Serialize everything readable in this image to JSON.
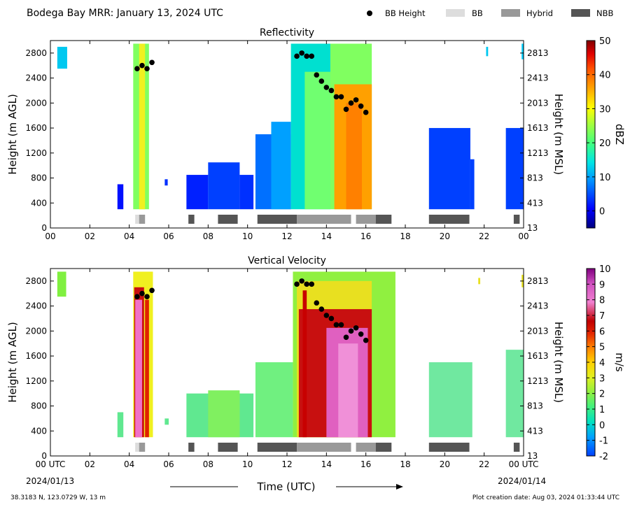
{
  "header": {
    "title": "Bodega Bay MRR:  January 13, 2024 UTC",
    "legend": [
      {
        "label": "BB Height",
        "kind": "dot",
        "color": "#000000"
      },
      {
        "label": "BB",
        "kind": "box",
        "color": "#dddddd"
      },
      {
        "label": "Hybrid",
        "kind": "box",
        "color": "#999999"
      },
      {
        "label": "NBB",
        "kind": "box",
        "color": "#555555"
      }
    ]
  },
  "footer": {
    "location": "38.3183 N, 123.0729 W, 13 m",
    "created": "Plot creation date: Aug 03, 2024 01:33:44 UTC",
    "xlabel": "Time (UTC)",
    "start_date": "2024/01/13",
    "end_date": "2024/01/14"
  },
  "chart_data": [
    {
      "type": "heatmap",
      "title": "Reflectivity",
      "xlabel": "",
      "ylabel": "Height (m AGL)",
      "y2label": "Height (m MSL)",
      "xlim": [
        0,
        24
      ],
      "ylim": [
        0,
        3000
      ],
      "xticks": [
        "00",
        "02",
        "04",
        "06",
        "08",
        "10",
        "12",
        "14",
        "16",
        "18",
        "20",
        "22",
        "00"
      ],
      "yticks": [
        0,
        400,
        800,
        1200,
        1600,
        2000,
        2400,
        2800
      ],
      "y2ticks": [
        13,
        413,
        813,
        1213,
        1613,
        2013,
        2413,
        2813
      ],
      "colorbar": {
        "label": "dBZ",
        "range": [
          -5,
          50
        ],
        "ticks": [
          0,
          10,
          20,
          30,
          40,
          50
        ]
      },
      "bb_height": {
        "x": [
          4.4,
          4.65,
          4.9,
          5.15,
          12.5,
          12.75,
          13.0,
          13.25,
          13.5,
          13.75,
          14.0,
          14.25,
          14.5,
          14.75,
          15.0,
          15.25,
          15.5,
          15.75,
          16.0
        ],
        "y": [
          2550,
          2600,
          2550,
          2650,
          2750,
          2800,
          2750,
          2750,
          2450,
          2350,
          2250,
          2200,
          2100,
          2100,
          1900,
          2000,
          2050,
          1950,
          1850
        ]
      },
      "precip_type_bar": [
        {
          "start": 4.3,
          "end": 4.5,
          "type": "BB"
        },
        {
          "start": 4.5,
          "end": 4.8,
          "type": "Hybrid"
        },
        {
          "start": 7.0,
          "end": 7.3,
          "type": "NBB"
        },
        {
          "start": 8.5,
          "end": 9.5,
          "type": "NBB"
        },
        {
          "start": 10.5,
          "end": 12.5,
          "type": "NBB"
        },
        {
          "start": 12.5,
          "end": 15.25,
          "type": "Hybrid"
        },
        {
          "start": 15.5,
          "end": 16.5,
          "type": "Hybrid"
        },
        {
          "start": 16.5,
          "end": 17.3,
          "type": "NBB"
        },
        {
          "start": 19.2,
          "end": 21.25,
          "type": "NBB"
        },
        {
          "start": 23.5,
          "end": 23.8,
          "type": "NBB"
        }
      ]
    },
    {
      "type": "heatmap",
      "title": "Vertical Velocity",
      "xlabel": "Time (UTC)",
      "ylabel": "Height (m AGL)",
      "y2label": "Height (m MSL)",
      "xlim": [
        0,
        24
      ],
      "ylim": [
        0,
        3000
      ],
      "xticks": [
        "00 UTC",
        "02",
        "04",
        "06",
        "08",
        "10",
        "12",
        "14",
        "16",
        "18",
        "20",
        "22",
        "00 UTC"
      ],
      "yticks": [
        0,
        400,
        800,
        1200,
        1600,
        2000,
        2400,
        2800
      ],
      "y2ticks": [
        13,
        413,
        813,
        1213,
        1613,
        2013,
        2413,
        2813
      ],
      "colorbar": {
        "label": "m/s",
        "range": [
          -2,
          10
        ],
        "ticks": [
          -2,
          -1,
          0,
          1,
          2,
          3,
          4,
          5,
          6,
          7,
          8,
          9,
          10
        ]
      },
      "bb_height": {
        "x": [
          4.4,
          4.65,
          4.9,
          5.15,
          12.5,
          12.75,
          13.0,
          13.25,
          13.5,
          13.75,
          14.0,
          14.25,
          14.5,
          14.75,
          15.0,
          15.25,
          15.5,
          15.75,
          16.0
        ],
        "y": [
          2550,
          2600,
          2550,
          2650,
          2750,
          2800,
          2750,
          2750,
          2450,
          2350,
          2250,
          2200,
          2100,
          2100,
          1900,
          2000,
          2050,
          1950,
          1850
        ]
      },
      "precip_type_bar": [
        {
          "start": 4.3,
          "end": 4.5,
          "type": "BB"
        },
        {
          "start": 4.5,
          "end": 4.8,
          "type": "Hybrid"
        },
        {
          "start": 7.0,
          "end": 7.3,
          "type": "NBB"
        },
        {
          "start": 8.5,
          "end": 9.5,
          "type": "NBB"
        },
        {
          "start": 10.5,
          "end": 12.5,
          "type": "NBB"
        },
        {
          "start": 12.5,
          "end": 15.25,
          "type": "Hybrid"
        },
        {
          "start": 15.5,
          "end": 16.5,
          "type": "Hybrid"
        },
        {
          "start": 16.5,
          "end": 17.3,
          "type": "NBB"
        },
        {
          "start": 19.2,
          "end": 21.25,
          "type": "NBB"
        },
        {
          "start": 23.5,
          "end": 23.8,
          "type": "NBB"
        }
      ]
    }
  ]
}
